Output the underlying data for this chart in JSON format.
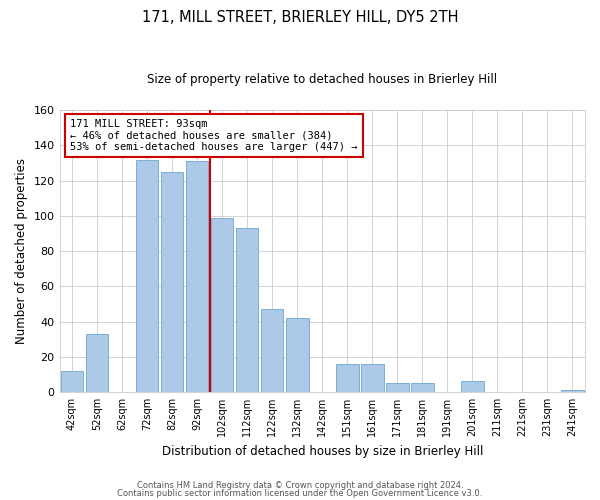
{
  "title": "171, MILL STREET, BRIERLEY HILL, DY5 2TH",
  "subtitle": "Size of property relative to detached houses in Brierley Hill",
  "xlabel": "Distribution of detached houses by size in Brierley Hill",
  "ylabel": "Number of detached properties",
  "bar_labels": [
    "42sqm",
    "52sqm",
    "62sqm",
    "72sqm",
    "82sqm",
    "92sqm",
    "102sqm",
    "112sqm",
    "122sqm",
    "132sqm",
    "142sqm",
    "151sqm",
    "161sqm",
    "171sqm",
    "181sqm",
    "191sqm",
    "201sqm",
    "211sqm",
    "221sqm",
    "231sqm",
    "241sqm"
  ],
  "bar_values": [
    12,
    33,
    0,
    132,
    125,
    131,
    99,
    93,
    47,
    42,
    0,
    16,
    16,
    5,
    5,
    0,
    6,
    0,
    0,
    0,
    1
  ],
  "bar_color": "#adc9e8",
  "bar_edge_color": "#7aafd4",
  "reference_line_x_label": "92sqm",
  "reference_line_color": "#cc0000",
  "annotation_title": "171 MILL STREET: 93sqm",
  "annotation_line1": "← 46% of detached houses are smaller (384)",
  "annotation_line2": "53% of semi-detached houses are larger (447) →",
  "annotation_box_edge_color": "#cc0000",
  "ylim": [
    0,
    160
  ],
  "yticks": [
    0,
    20,
    40,
    60,
    80,
    100,
    120,
    140,
    160
  ],
  "footer_line1": "Contains HM Land Registry data © Crown copyright and database right 2024.",
  "footer_line2": "Contains public sector information licensed under the Open Government Licence v3.0.",
  "bg_color": "#ffffff",
  "grid_color": "#cccccc"
}
